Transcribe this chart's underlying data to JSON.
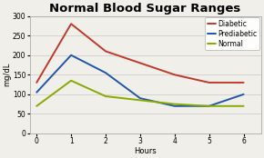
{
  "title": "Normal Blood Sugar Ranges",
  "xlabel": "Hours",
  "ylabel": "mg/dL",
  "x": [
    0,
    1,
    2,
    3,
    4,
    5,
    6
  ],
  "series": [
    {
      "label": "Diabetic",
      "color": "#c0392b",
      "values": [
        130,
        280,
        210,
        180,
        150,
        130,
        130
      ]
    },
    {
      "label": "Prediabetic",
      "color": "#2255aa",
      "values": [
        105,
        200,
        155,
        90,
        70,
        70,
        100
      ]
    },
    {
      "label": "Normal",
      "color": "#88aa00",
      "values": [
        70,
        135,
        95,
        85,
        75,
        70,
        70
      ]
    }
  ],
  "ylim": [
    0,
    300
  ],
  "yticks": [
    0,
    50,
    100,
    150,
    200,
    250,
    300
  ],
  "xticks": [
    0,
    1,
    2,
    3,
    4,
    5,
    6
  ],
  "background_color": "#f0efea",
  "plot_bg_color": "#f0efea",
  "title_fontsize": 9.5,
  "axis_label_fontsize": 6,
  "tick_fontsize": 5.5,
  "legend_fontsize": 5.5,
  "linewidth": 1.4
}
